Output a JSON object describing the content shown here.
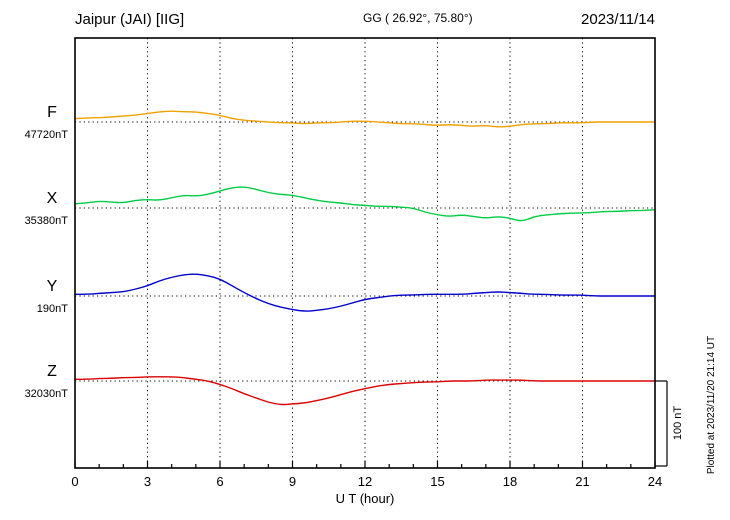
{
  "header": {
    "station": "Jaipur (JAI)  [IIG]",
    "coords": "GG ( 26.92°, 75.80°)",
    "date": "2023/11/14"
  },
  "footer": {
    "plotted_at": "Plotted at 2023/11/20 21:14 UT"
  },
  "scale_bar": {
    "label": "100 nT",
    "nT": 100
  },
  "chart_data": {
    "type": "line",
    "title": "Jaipur (JAI) [IIG] magnetogram 2023/11/14",
    "xlabel": "U T (hour)",
    "x_range": [
      0,
      24
    ],
    "x_ticks": [
      0,
      3,
      6,
      9,
      12,
      15,
      18,
      21,
      24
    ],
    "minor_tick_hours": 1,
    "grid": "dotted-vertical-at-major-ticks",
    "x_start_hour": 0,
    "x_step_hours": 0.5,
    "scale_nT": 100,
    "series": [
      {
        "name": "F",
        "baseline_label": "47720nT",
        "baseline_nT": 47720,
        "color": "#f2a000",
        "offsets_nT_from_baseline": [
          4,
          5,
          5,
          6,
          7,
          8,
          10,
          12,
          13,
          12,
          12,
          10,
          8,
          4,
          2,
          1,
          0,
          -1,
          -1,
          -2,
          -1,
          -1,
          0,
          1,
          1,
          0,
          -1,
          -2,
          -2,
          -3,
          -4,
          -3,
          -4,
          -5,
          -4,
          -6,
          -5,
          -3,
          -2,
          -2,
          -1,
          -1,
          -1,
          0,
          0,
          0,
          0,
          0,
          0
        ]
      },
      {
        "name": "X",
        "baseline_label": "35380nT",
        "baseline_nT": 35380,
        "color": "#00cc44",
        "offsets_nT_from_baseline": [
          5,
          6,
          8,
          7,
          6,
          9,
          10,
          9,
          12,
          15,
          14,
          16,
          20,
          24,
          25,
          22,
          18,
          16,
          15,
          12,
          9,
          7,
          6,
          4,
          3,
          2,
          2,
          1,
          0,
          -5,
          -8,
          -10,
          -8,
          -10,
          -12,
          -10,
          -12,
          -16,
          -10,
          -8,
          -7,
          -6,
          -6,
          -5,
          -4,
          -4,
          -3,
          -3,
          -2
        ]
      },
      {
        "name": "Y",
        "baseline_label": "190nT",
        "baseline_nT": 190,
        "color": "#0000cc",
        "offsets_nT_from_baseline": [
          2,
          2,
          3,
          4,
          5,
          8,
          12,
          18,
          22,
          25,
          26,
          24,
          20,
          12,
          4,
          -3,
          -9,
          -13,
          -16,
          -18,
          -17,
          -15,
          -12,
          -8,
          -4,
          -2,
          0,
          1,
          1,
          2,
          2,
          2,
          2,
          3,
          4,
          5,
          4,
          3,
          2,
          2,
          1,
          1,
          1,
          0,
          0,
          0,
          0,
          0,
          0
        ]
      },
      {
        "name": "Z",
        "baseline_label": "32030nT",
        "baseline_nT": 32030,
        "color": "#dd0000",
        "offsets_nT_from_baseline": [
          2,
          2,
          3,
          3,
          4,
          4,
          5,
          5,
          5,
          4,
          2,
          0,
          -4,
          -9,
          -15,
          -20,
          -25,
          -28,
          -27,
          -26,
          -23,
          -20,
          -16,
          -12,
          -9,
          -6,
          -4,
          -3,
          -2,
          -1,
          -1,
          0,
          0,
          0,
          1,
          1,
          1,
          1,
          0,
          0,
          0,
          0,
          0,
          0,
          0,
          0,
          0,
          0,
          0
        ]
      }
    ]
  }
}
